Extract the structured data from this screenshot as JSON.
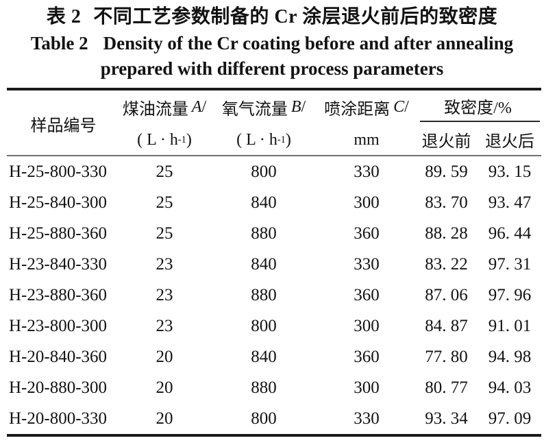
{
  "caption": {
    "zh_label": "表 2",
    "zh_text": "不同工艺参数制备的 Cr 涂层退火前后的致密度",
    "en_label": "Table 2",
    "en_text": "Density of the Cr coating before and after annealing",
    "en_line2": "prepared with different process parameters"
  },
  "table": {
    "header": {
      "sample": "样品编号",
      "col_a": {
        "text": "煤油流量",
        "var": "A",
        "slash": "/",
        "unit_prefix": "( L · h",
        "unit_sup": "-1",
        "unit_suffix": " )"
      },
      "col_b": {
        "text": "氧气流量",
        "var": "B",
        "slash": "/",
        "unit_prefix": "( L · h",
        "unit_sup": "-1",
        "unit_suffix": " )"
      },
      "col_c": {
        "text": "喷涂距离",
        "var": "C",
        "slash": "/",
        "unit": "mm"
      },
      "density_group": {
        "label": "致密度/%",
        "before": "退火前",
        "after": "退火后"
      }
    },
    "rows": [
      {
        "id": "H-25-800-330",
        "a": "25",
        "b": "800",
        "c": "330",
        "before": "89. 59",
        "after": "93. 15"
      },
      {
        "id": "H-25-840-300",
        "a": "25",
        "b": "840",
        "c": "300",
        "before": "83. 70",
        "after": "93. 47"
      },
      {
        "id": "H-25-880-360",
        "a": "25",
        "b": "880",
        "c": "360",
        "before": "88. 28",
        "after": "96. 44"
      },
      {
        "id": "H-23-840-330",
        "a": "23",
        "b": "840",
        "c": "330",
        "before": "83. 22",
        "after": "97. 31"
      },
      {
        "id": "H-23-880-360",
        "a": "23",
        "b": "880",
        "c": "360",
        "before": "87. 06",
        "after": "97. 96"
      },
      {
        "id": "H-23-800-300",
        "a": "23",
        "b": "800",
        "c": "300",
        "before": "84. 87",
        "after": "91. 01"
      },
      {
        "id": "H-20-840-360",
        "a": "20",
        "b": "840",
        "c": "360",
        "before": "77. 80",
        "after": "94. 98"
      },
      {
        "id": "H-20-880-300",
        "a": "20",
        "b": "880",
        "c": "300",
        "before": "80. 77",
        "after": "94. 03"
      },
      {
        "id": "H-20-800-330",
        "a": "20",
        "b": "800",
        "c": "330",
        "before": "93. 34",
        "after": "97. 09"
      }
    ],
    "colors": {
      "text": "#121212",
      "thick_rule": "#1a1a1a",
      "header_rule": "#6f6f6f",
      "sub_rule": "#2a2a2a",
      "background": "#ffffff"
    }
  }
}
